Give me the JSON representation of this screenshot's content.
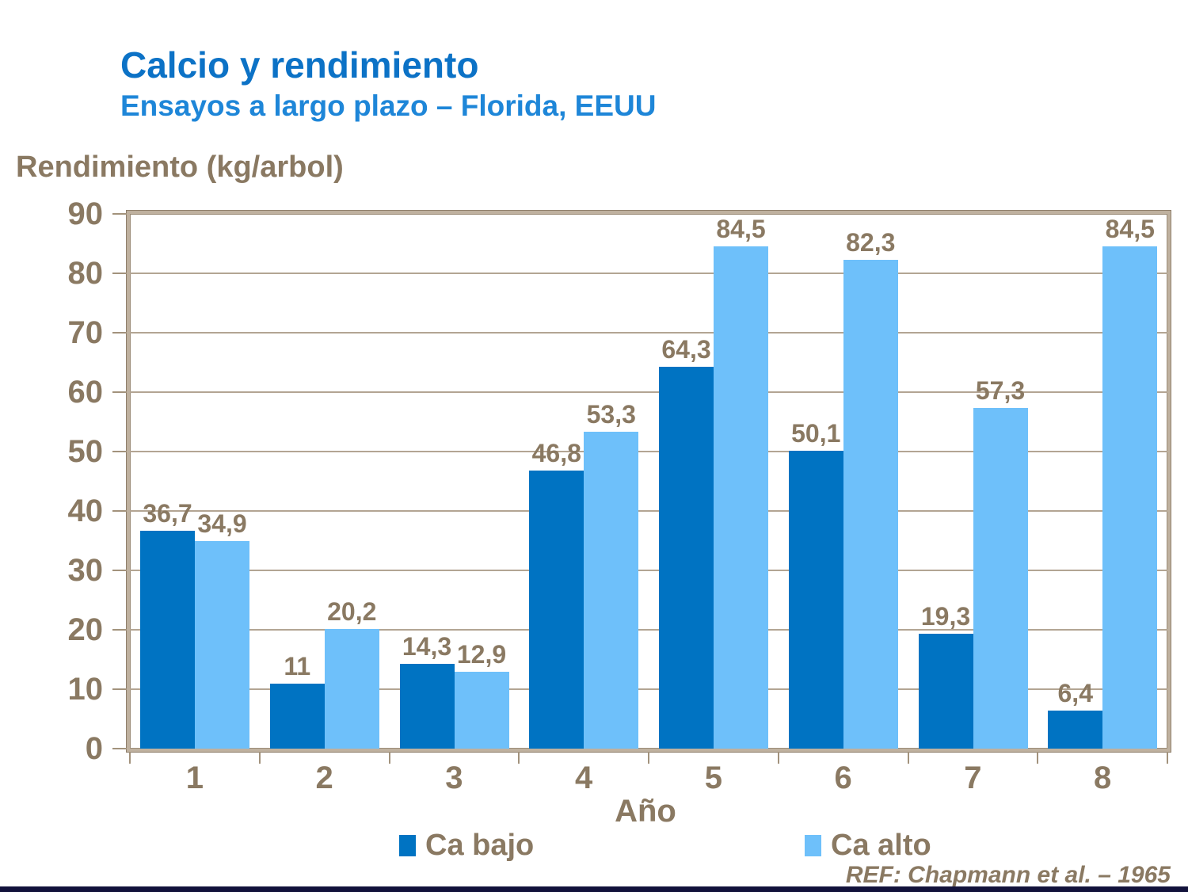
{
  "header": {
    "title": "Calcio y rendimiento",
    "subtitle": "Ensayos a largo plazo – Florida, EEUU"
  },
  "chart_data": {
    "type": "bar",
    "title": "Calcio y rendimiento — Ensayos a largo plazo, Florida EEUU",
    "ylabel": "Rendimiento (kg/arbol)",
    "xlabel": "Año",
    "categories": [
      "1",
      "2",
      "3",
      "4",
      "5",
      "6",
      "7",
      "8"
    ],
    "series": [
      {
        "name": "Ca bajo",
        "color": "#0073C2",
        "values": [
          36.7,
          11,
          14.3,
          46.8,
          64.3,
          50.1,
          19.3,
          6.4
        ],
        "labels": [
          "36,7",
          "11",
          "14,3",
          "46,8",
          "64,3",
          "50,1",
          "19,3",
          "6,4"
        ]
      },
      {
        "name": "Ca alto",
        "color": "#6EC0FA",
        "values": [
          34.9,
          20.2,
          12.9,
          53.3,
          84.5,
          82.3,
          57.3,
          84.5
        ],
        "labels": [
          "34,9",
          "20,2",
          "12,9",
          "53,3",
          "84,5",
          "82,3",
          "57,3",
          "84,5"
        ]
      }
    ],
    "ylim": [
      0,
      90
    ],
    "ytick_step": 10,
    "yticks": [
      0,
      10,
      20,
      30,
      40,
      50,
      60,
      70,
      80,
      90
    ],
    "grid": true,
    "legend_position": "bottom"
  },
  "footer": {
    "reference": "REF: Chapmann et al. – 1965"
  },
  "colors": {
    "bar_ca_bajo": "#0073C2",
    "bar_ca_alto": "#6EC0FA",
    "title_blue": "#0C72C6",
    "subtitle_blue": "#1E86D8",
    "text_brown": "#8A7962",
    "grid_taupe": "#B3A593",
    "frame_taupe": "#BFB19F",
    "frame_edge": "#8F7F6B",
    "footer_bar_navy": "#12123B"
  }
}
